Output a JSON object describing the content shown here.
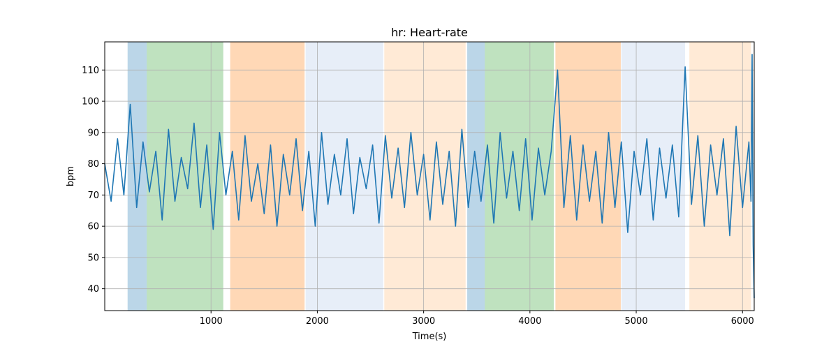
{
  "chart_data": {
    "type": "line",
    "title": "hr: Heart-rate",
    "xlabel": "Time(s)",
    "ylabel": "bpm",
    "xlim": [
      0,
      6110
    ],
    "ylim": [
      33,
      119
    ],
    "grid": true,
    "x_ticks": [
      1000,
      2000,
      3000,
      4000,
      5000,
      6000
    ],
    "y_ticks": [
      40,
      50,
      60,
      70,
      80,
      90,
      100,
      110
    ],
    "line_color": "#1f77b4",
    "bands": [
      {
        "start": 215,
        "end": 395,
        "color": "#1f77b4",
        "alpha": 0.3
      },
      {
        "start": 395,
        "end": 1115,
        "color": "#2ca02c",
        "alpha": 0.3
      },
      {
        "start": 1180,
        "end": 1880,
        "color": "#ff7f0e",
        "alpha": 0.3
      },
      {
        "start": 1890,
        "end": 2620,
        "color": "#aec7e8",
        "alpha": 0.3
      },
      {
        "start": 2630,
        "end": 3395,
        "color": "#ffbb78",
        "alpha": 0.3
      },
      {
        "start": 3410,
        "end": 3575,
        "color": "#1f77b4",
        "alpha": 0.3
      },
      {
        "start": 3575,
        "end": 4225,
        "color": "#2ca02c",
        "alpha": 0.3
      },
      {
        "start": 4240,
        "end": 4855,
        "color": "#ff7f0e",
        "alpha": 0.3
      },
      {
        "start": 4860,
        "end": 5460,
        "color": "#aec7e8",
        "alpha": 0.3
      },
      {
        "start": 5500,
        "end": 6080,
        "color": "#ffbb78",
        "alpha": 0.3
      }
    ],
    "series": [
      {
        "color": "#1f77b4",
        "x": [
          0,
          60,
          120,
          180,
          240,
          300,
          360,
          420,
          480,
          540,
          600,
          660,
          720,
          780,
          840,
          900,
          960,
          1020,
          1080,
          1140,
          1200,
          1260,
          1320,
          1380,
          1440,
          1500,
          1560,
          1620,
          1680,
          1740,
          1800,
          1860,
          1920,
          1980,
          2040,
          2100,
          2160,
          2220,
          2280,
          2340,
          2400,
          2460,
          2520,
          2580,
          2640,
          2700,
          2760,
          2820,
          2880,
          2940,
          3000,
          3060,
          3120,
          3180,
          3240,
          3300,
          3360,
          3420,
          3480,
          3540,
          3600,
          3660,
          3720,
          3780,
          3840,
          3900,
          3960,
          4020,
          4080,
          4140,
          4200,
          4260,
          4320,
          4380,
          4440,
          4500,
          4560,
          4620,
          4680,
          4740,
          4800,
          4860,
          4920,
          4980,
          5040,
          5100,
          5160,
          5220,
          5280,
          5340,
          5400,
          5460,
          5520,
          5580,
          5640,
          5700,
          5760,
          5820,
          5880,
          5940,
          6000,
          6060,
          6080,
          6090,
          6100,
          6110
        ],
        "values": [
          80,
          68,
          88,
          70,
          99,
          66,
          87,
          71,
          84,
          62,
          91,
          68,
          82,
          72,
          93,
          66,
          86,
          59,
          90,
          70,
          84,
          62,
          89,
          68,
          80,
          64,
          86,
          60,
          83,
          70,
          88,
          65,
          84,
          60,
          90,
          67,
          83,
          70,
          88,
          64,
          82,
          72,
          86,
          61,
          89,
          69,
          85,
          66,
          90,
          70,
          83,
          62,
          87,
          67,
          84,
          60,
          91,
          66,
          84,
          68,
          86,
          61,
          90,
          69,
          84,
          65,
          88,
          62,
          85,
          70,
          84,
          110,
          66,
          89,
          62,
          86,
          68,
          84,
          61,
          90,
          66,
          87,
          58,
          84,
          70,
          88,
          62,
          85,
          69,
          86,
          63,
          111,
          67,
          89,
          60,
          86,
          70,
          88,
          57,
          92,
          66,
          87,
          68,
          115,
          54,
          37
        ]
      }
    ]
  }
}
